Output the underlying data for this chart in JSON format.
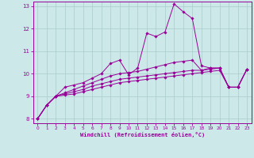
{
  "xlabel": "Windchill (Refroidissement éolien,°C)",
  "bg_color": "#cce8e8",
  "grid_color": "#aacccc",
  "line_color": "#990099",
  "xlim": [
    -0.5,
    23.5
  ],
  "ylim": [
    7.8,
    13.2
  ],
  "yticks": [
    8,
    9,
    10,
    11,
    12,
    13
  ],
  "xticks": [
    0,
    1,
    2,
    3,
    4,
    5,
    6,
    7,
    8,
    9,
    10,
    11,
    12,
    13,
    14,
    15,
    16,
    17,
    18,
    19,
    20,
    21,
    22,
    23
  ],
  "lines": [
    [
      8.0,
      8.6,
      9.0,
      9.4,
      9.5,
      9.6,
      9.8,
      10.0,
      10.45,
      10.6,
      9.95,
      10.25,
      11.8,
      11.65,
      11.85,
      13.1,
      12.75,
      12.45,
      10.35,
      10.25,
      10.25,
      9.4,
      9.4,
      10.2
    ],
    [
      8.0,
      8.6,
      9.0,
      9.15,
      9.3,
      9.45,
      9.6,
      9.75,
      9.9,
      10.0,
      10.05,
      10.1,
      10.2,
      10.3,
      10.4,
      10.5,
      10.55,
      10.6,
      10.15,
      10.25,
      10.25,
      9.4,
      9.4,
      10.2
    ],
    [
      8.0,
      8.6,
      9.0,
      9.1,
      9.2,
      9.3,
      9.45,
      9.55,
      9.65,
      9.75,
      9.8,
      9.85,
      9.9,
      9.95,
      10.0,
      10.05,
      10.1,
      10.15,
      10.15,
      10.2,
      10.25,
      9.4,
      9.4,
      10.2
    ],
    [
      8.0,
      8.6,
      9.0,
      9.05,
      9.1,
      9.2,
      9.3,
      9.4,
      9.5,
      9.6,
      9.65,
      9.7,
      9.75,
      9.8,
      9.85,
      9.9,
      9.95,
      10.0,
      10.05,
      10.1,
      10.15,
      9.4,
      9.4,
      10.2
    ]
  ]
}
